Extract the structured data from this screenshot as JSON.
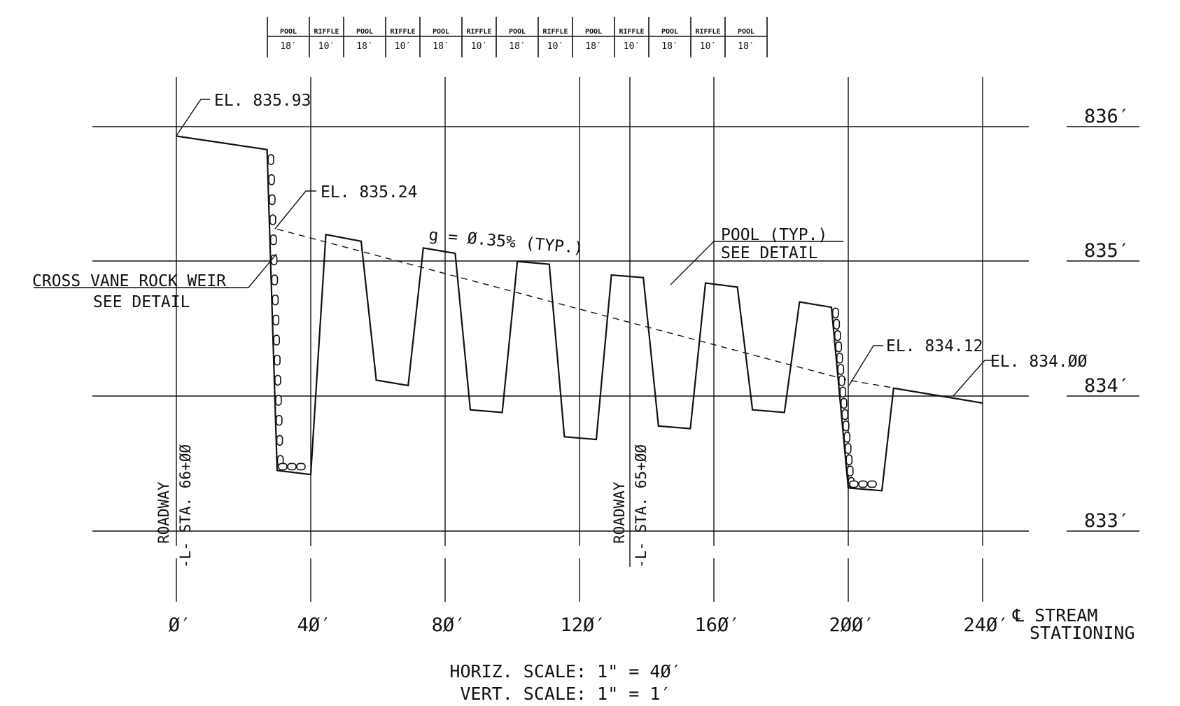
{
  "segments": [
    {
      "name": "POOL",
      "length": "18′"
    },
    {
      "name": "RIFFLE",
      "length": "10′"
    },
    {
      "name": "POOL",
      "length": "18′"
    },
    {
      "name": "RIFFLE",
      "length": "10′"
    },
    {
      "name": "POOL",
      "length": "18′"
    },
    {
      "name": "RIFFLE",
      "length": "10′"
    },
    {
      "name": "POOL",
      "length": "18′"
    },
    {
      "name": "RIFFLE",
      "length": "10′"
    },
    {
      "name": "POOL",
      "length": "18′"
    },
    {
      "name": "RIFFLE",
      "length": "10′"
    },
    {
      "name": "POOL",
      "length": "18′"
    },
    {
      "name": "RIFFLE",
      "length": "10′"
    },
    {
      "name": "POOL",
      "length": "18′"
    }
  ],
  "elevation_labels": [
    "836′",
    "835′",
    "834′",
    "833′"
  ],
  "station_labels": [
    "Ø′",
    "4Ø′",
    "8Ø′",
    "12Ø′",
    "16Ø′",
    "2ØØ′",
    "24Ø′"
  ],
  "annotations": {
    "el_top": "EL. 835.93",
    "el_weir1": "EL. 835.24",
    "grade": "g = Ø.35% (TYP.)",
    "pool_line1": "POOL (TYP.)",
    "pool_line2": "SEE DETAIL",
    "weir_line1": "CROSS VANE ROCK WEIR",
    "weir_line2": "SEE DETAIL",
    "el_weir2": "EL. 834.12",
    "el_end": "EL. 834.ØØ"
  },
  "roadway_marks": [
    {
      "roadway": "ROADWAY",
      "station": "-L- STA. 66+ØØ"
    },
    {
      "roadway": "ROADWAY",
      "station": "-L- STA. 65+ØØ"
    }
  ],
  "stream_label": {
    "line1": "℄ STREAM",
    "line2": "STATIONING"
  },
  "scales": {
    "horizontal": "HORIZ. SCALE: 1\" = 4Ø′",
    "vertical": "VERT. SCALE: 1\" = 1′"
  },
  "profile": {
    "x_unit": "ft",
    "y_unit": "ft elevation",
    "points": [
      [
        0,
        835.93
      ],
      [
        27,
        835.83
      ],
      [
        30,
        833.45
      ],
      [
        40,
        833.42
      ],
      [
        44.5,
        835.2
      ],
      [
        55,
        835.15
      ],
      [
        59.5,
        834.12
      ],
      [
        69,
        834.08
      ],
      [
        73.5,
        835.1
      ],
      [
        83,
        835.06
      ],
      [
        87.5,
        833.9
      ],
      [
        97,
        833.88
      ],
      [
        101.5,
        835.0
      ],
      [
        111,
        834.98
      ],
      [
        115.5,
        833.7
      ],
      [
        125,
        833.68
      ],
      [
        129.5,
        834.9
      ],
      [
        139,
        834.88
      ],
      [
        143.5,
        833.78
      ],
      [
        153,
        833.76
      ],
      [
        157.5,
        834.84
      ],
      [
        167,
        834.81
      ],
      [
        171.5,
        833.9
      ],
      [
        181,
        833.88
      ],
      [
        185.5,
        834.7
      ],
      [
        195,
        834.66
      ],
      [
        200,
        833.32
      ],
      [
        210,
        833.3
      ],
      [
        213.5,
        834.06
      ],
      [
        240,
        833.95
      ]
    ],
    "grade_line": [
      [
        30,
        835.24
      ],
      [
        200,
        834.12
      ],
      [
        240,
        833.95
      ]
    ]
  }
}
